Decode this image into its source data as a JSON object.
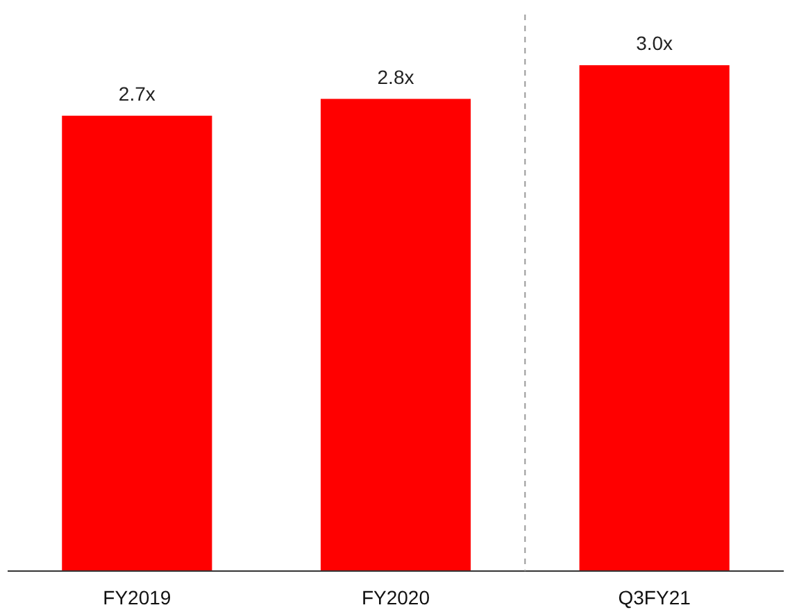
{
  "chart_data": {
    "type": "bar",
    "categories": [
      "FY2019",
      "FY2020",
      "Q3FY21"
    ],
    "values": [
      2.7,
      2.8,
      3.0
    ],
    "color": "#ff0000",
    "value_labels": [
      "2.7x",
      "2.8x",
      "3.0x"
    ],
    "ylim": [
      0,
      3.3
    ],
    "grid": false,
    "tick_labels": "x"
  }
}
